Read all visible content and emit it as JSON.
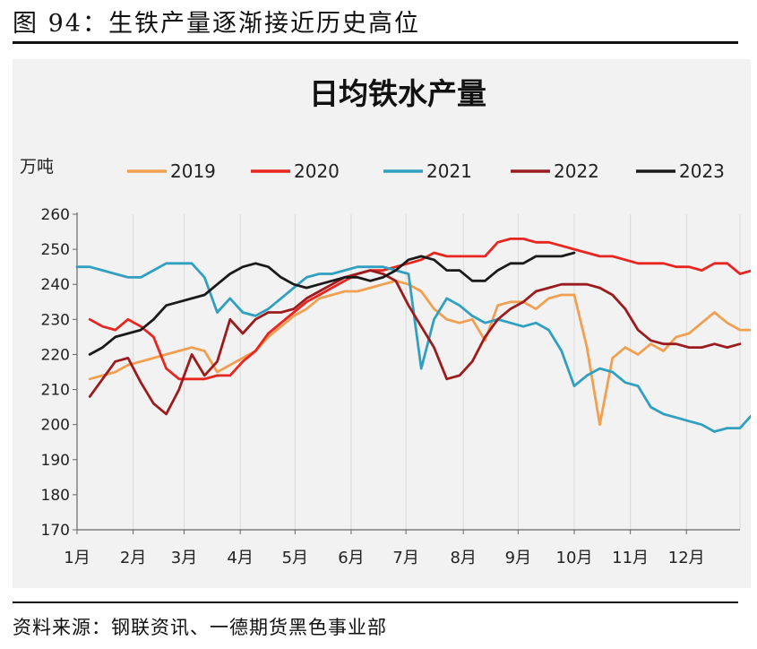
{
  "figure": {
    "title": "图 94：生铁产量逐渐接近历史高位",
    "source": "资料来源：钢联资讯、一德期货黑色事业部"
  },
  "chart_data": {
    "type": "line",
    "title": "日均铁水产量",
    "ylabel": "万吨",
    "xlabel": "",
    "ylim": [
      170,
      260
    ],
    "yticks": [
      170,
      180,
      190,
      200,
      210,
      220,
      230,
      240,
      250,
      260
    ],
    "xlim": [
      1,
      53
    ],
    "month_ticks": [
      {
        "label": "1月",
        "week": 1
      },
      {
        "label": "2月",
        "week": 5.4
      },
      {
        "label": "3月",
        "week": 9.4
      },
      {
        "label": "4月",
        "week": 13.8
      },
      {
        "label": "5月",
        "week": 18.1
      },
      {
        "label": "6月",
        "week": 22.5
      },
      {
        "label": "7月",
        "week": 26.8
      },
      {
        "label": "8月",
        "week": 31.3
      },
      {
        "label": "9月",
        "week": 35.6
      },
      {
        "label": "10月",
        "week": 40
      },
      {
        "label": "11月",
        "week": 44.4
      },
      {
        "label": "12月",
        "week": 48.8
      }
    ],
    "grid": "vertical",
    "legend": "top",
    "series": [
      {
        "name": "2019",
        "color": "#f0a050",
        "start_week": 2,
        "values": [
          213,
          214,
          215,
          217,
          218,
          219,
          220,
          221,
          222,
          221,
          215,
          217,
          219,
          221,
          225,
          228,
          231,
          233,
          236,
          237,
          238,
          238,
          239,
          240,
          241,
          240,
          238,
          233,
          230,
          229,
          230,
          224,
          234,
          235,
          235,
          233,
          236,
          237,
          237,
          222,
          200,
          219,
          222,
          220,
          223,
          221,
          225,
          226,
          229,
          232,
          229,
          227,
          227
        ]
      },
      {
        "name": "2020",
        "color": "#e8251f",
        "start_week": 2,
        "values": [
          230,
          228,
          227,
          230,
          228,
          225,
          216,
          213,
          213,
          213,
          214,
          214,
          218,
          221,
          226,
          229,
          232,
          235,
          237,
          239,
          241,
          243,
          244,
          244,
          245,
          246,
          247,
          249,
          248,
          248,
          248,
          248,
          252,
          253,
          253,
          252,
          252,
          251,
          250,
          249,
          248,
          248,
          247,
          246,
          246,
          246,
          245,
          245,
          244,
          246,
          246,
          243,
          244,
          245
        ]
      },
      {
        "name": "2021",
        "color": "#31a0c0",
        "start_week": 1,
        "values": [
          245,
          245,
          244,
          243,
          242,
          242,
          244,
          246,
          246,
          246,
          242,
          232,
          236,
          232,
          231,
          233,
          236,
          239,
          242,
          243,
          243,
          244,
          245,
          245,
          245,
          244,
          243,
          216,
          230,
          236,
          234,
          231,
          229,
          230,
          229,
          228,
          229,
          227,
          221,
          211,
          214,
          216,
          215,
          212,
          211,
          205,
          203,
          202,
          201,
          200,
          198,
          199,
          199,
          203
        ]
      },
      {
        "name": "2022",
        "color": "#9b1c1e",
        "start_week": 2,
        "values": [
          208,
          213,
          218,
          219,
          212,
          206,
          203,
          210,
          220,
          214,
          218,
          230,
          226,
          230,
          232,
          232,
          233,
          236,
          238,
          240,
          242,
          243,
          244,
          243,
          241,
          234,
          228,
          222,
          213,
          214,
          218,
          225,
          230,
          233,
          235,
          238,
          239,
          240,
          240,
          240,
          239,
          237,
          233,
          227,
          224,
          223,
          223,
          222,
          222,
          223,
          222,
          223
        ]
      },
      {
        "name": "2023",
        "color": "#1a1a1a",
        "start_week": 2,
        "values": [
          220,
          222,
          225,
          226,
          227,
          230,
          234,
          235,
          236,
          237,
          240,
          243,
          245,
          246,
          245,
          242,
          240,
          239,
          240,
          241,
          242,
          242,
          241,
          242,
          244,
          247,
          248,
          247,
          244,
          244,
          241,
          241,
          244,
          246,
          246,
          248,
          248,
          248,
          249
        ]
      }
    ]
  }
}
